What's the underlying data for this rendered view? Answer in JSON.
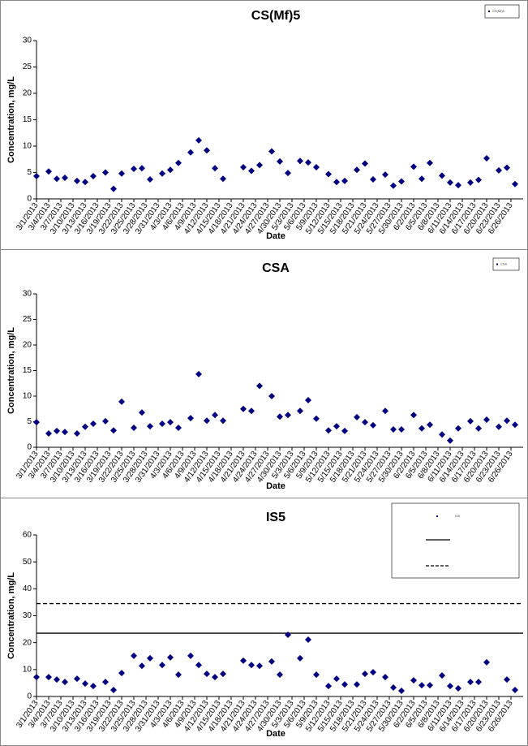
{
  "chart_data": [
    {
      "type": "scatter",
      "title": "CS(Mf)5",
      "x_label": "Date",
      "y_label": "Concentration, mg/L",
      "series": [
        {
          "name": "CS(Mf)5",
          "color": "#000080",
          "x": [
            "3/1/2013",
            "3/4/2013",
            "3/6/2013",
            "3/8/2013",
            "3/11/2013",
            "3/13/2013",
            "3/15/2013",
            "3/18/2013",
            "3/20/2013",
            "3/22/2013",
            "3/25/2013",
            "3/27/2013",
            "3/29/2013",
            "4/1/2013",
            "4/3/2013",
            "4/5/2013",
            "4/8/2013",
            "4/10/2013",
            "4/12/2013",
            "4/14/2013",
            "4/16/2013",
            "4/21/2013",
            "4/23/2013",
            "4/25/2013",
            "4/28/2013",
            "4/30/2013",
            "5/2/2013",
            "5/5/2013",
            "5/7/2013",
            "5/9/2013",
            "5/12/2013",
            "5/14/2013",
            "5/16/2013",
            "5/19/2013",
            "5/21/2013",
            "5/23/2013",
            "5/26/2013",
            "5/28/2013",
            "5/30/2013",
            "6/2/2013",
            "6/4/2013",
            "6/6/2013",
            "6/9/2013",
            "6/11/2013",
            "6/13/2013",
            "6/16/2013",
            "6/18/2013",
            "6/20/2013",
            "6/23/2013",
            "6/25/2013",
            "6/27/2013"
          ],
          "values": [
            4.3,
            5.2,
            3.8,
            4.0,
            3.4,
            3.2,
            4.3,
            5.0,
            1.9,
            4.8,
            5.7,
            5.8,
            3.7,
            4.8,
            5.5,
            6.8,
            8.8,
            11.1,
            9.2,
            5.8,
            3.8,
            6.0,
            5.3,
            6.4,
            9.0,
            7.1,
            4.9,
            7.2,
            6.9,
            6.0,
            4.7,
            3.2,
            3.4,
            5.5,
            6.7,
            3.7,
            4.6,
            2.5,
            3.3,
            6.1,
            3.8,
            6.8,
            4.4,
            3.1,
            2.6,
            3.1,
            3.6,
            7.7,
            5.4,
            5.9,
            2.8
          ]
        }
      ],
      "ylim": [
        0,
        30
      ],
      "yticks": [
        0,
        5,
        10,
        15,
        20,
        25,
        30
      ],
      "xlim": [
        "3/1/2013",
        "6/29/2013"
      ],
      "xticks": [
        "3/1/2013",
        "3/4/2013",
        "3/7/2013",
        "3/10/2013",
        "3/13/2013",
        "3/16/2013",
        "3/19/2013",
        "3/22/2013",
        "3/25/2013",
        "3/28/2013",
        "3/31/2013",
        "4/3/2013",
        "4/6/2013",
        "4/9/2013",
        "4/12/2013",
        "4/15/2013",
        "4/18/2013",
        "4/21/2013",
        "4/24/2013",
        "4/27/2013",
        "4/30/2013",
        "5/3/2013",
        "5/6/2013",
        "5/9/2013",
        "5/12/2013",
        "5/15/2013",
        "5/18/2013",
        "5/21/2013",
        "5/24/2013",
        "5/27/2013",
        "5/30/2013",
        "6/2/2013",
        "6/5/2013",
        "6/8/2013",
        "6/11/2013",
        "6/14/2013",
        "6/17/2013",
        "6/20/2013",
        "6/23/2013",
        "6/26/2013"
      ]
    },
    {
      "type": "scatter",
      "title": "CSA",
      "x_label": "Date",
      "y_label": "Concentration, mg/L",
      "series": [
        {
          "name": "CSA",
          "color": "#000080",
          "x": [
            "3/1/2013",
            "3/4/2013",
            "3/6/2013",
            "3/8/2013",
            "3/11/2013",
            "3/13/2013",
            "3/15/2013",
            "3/18/2013",
            "3/20/2013",
            "3/22/2013",
            "3/25/2013",
            "3/27/2013",
            "3/29/2013",
            "4/1/2013",
            "4/3/2013",
            "4/5/2013",
            "4/8/2013",
            "4/10/2013",
            "4/12/2013",
            "4/14/2013",
            "4/16/2013",
            "4/21/2013",
            "4/23/2013",
            "4/25/2013",
            "4/28/2013",
            "4/30/2013",
            "5/2/2013",
            "5/5/2013",
            "5/7/2013",
            "5/9/2013",
            "5/12/2013",
            "5/14/2013",
            "5/16/2013",
            "5/19/2013",
            "5/21/2013",
            "5/23/2013",
            "5/26/2013",
            "5/28/2013",
            "5/30/2013",
            "6/2/2013",
            "6/4/2013",
            "6/6/2013",
            "6/9/2013",
            "6/11/2013",
            "6/13/2013",
            "6/16/2013",
            "6/18/2013",
            "6/20/2013",
            "6/23/2013",
            "6/25/2013",
            "6/27/2013"
          ],
          "values": [
            4.9,
            2.7,
            3.2,
            3.0,
            2.7,
            4.0,
            4.6,
            5.1,
            3.3,
            8.9,
            3.8,
            6.8,
            4.1,
            4.6,
            4.9,
            3.8,
            5.7,
            14.3,
            5.2,
            6.3,
            5.2,
            7.5,
            7.1,
            12.0,
            10.0,
            6.0,
            6.3,
            7.1,
            9.2,
            5.6,
            3.3,
            4.1,
            3.2,
            5.9,
            4.9,
            4.3,
            7.1,
            3.5,
            3.5,
            6.3,
            3.7,
            4.4,
            2.5,
            1.3,
            3.7,
            5.1,
            3.7,
            5.4,
            4.0,
            5.2,
            4.4
          ]
        }
      ],
      "ylim": [
        0,
        30
      ],
      "yticks": [
        0,
        5,
        10,
        15,
        20,
        25,
        30
      ],
      "xlim": [
        "3/1/2013",
        "6/29/2013"
      ],
      "xticks": [
        "3/1/2013",
        "3/4/2013",
        "3/7/2013",
        "3/10/2013",
        "3/13/2013",
        "3/16/2013",
        "3/19/2013",
        "3/22/2013",
        "3/25/2013",
        "3/28/2013",
        "3/31/2013",
        "4/3/2013",
        "4/6/2013",
        "4/9/2013",
        "4/12/2013",
        "4/15/2013",
        "4/18/2013",
        "4/21/2013",
        "4/24/2013",
        "4/27/2013",
        "4/30/2013",
        "5/3/2013",
        "5/6/2013",
        "5/9/2013",
        "5/12/2013",
        "5/15/2013",
        "5/18/2013",
        "5/21/2013",
        "5/24/2013",
        "5/27/2013",
        "5/30/2013",
        "6/2/2013",
        "6/5/2013",
        "6/8/2013",
        "6/11/2013",
        "6/14/2013",
        "6/17/2013",
        "6/20/2013",
        "6/23/2013",
        "6/26/2013"
      ]
    },
    {
      "type": "scatter",
      "title": "IS5",
      "x_label": "Date",
      "y_label": "Concentration, mg/L",
      "series": [
        {
          "name": "IS5",
          "color": "#000080",
          "x": [
            "3/1/2013",
            "3/4/2013",
            "3/6/2013",
            "3/8/2013",
            "3/11/2013",
            "3/13/2013",
            "3/15/2013",
            "3/18/2013",
            "3/20/2013",
            "3/22/2013",
            "3/25/2013",
            "3/27/2013",
            "3/29/2013",
            "4/1/2013",
            "4/3/2013",
            "4/5/2013",
            "4/8/2013",
            "4/10/2013",
            "4/12/2013",
            "4/14/2013",
            "4/16/2013",
            "4/21/2013",
            "4/23/2013",
            "4/25/2013",
            "4/28/2013",
            "4/30/2013",
            "5/2/2013",
            "5/5/2013",
            "5/7/2013",
            "5/9/2013",
            "5/12/2013",
            "5/14/2013",
            "5/16/2013",
            "5/19/2013",
            "5/21/2013",
            "5/23/2013",
            "5/26/2013",
            "5/28/2013",
            "5/30/2013",
            "6/2/2013",
            "6/4/2013",
            "6/6/2013",
            "6/9/2013",
            "6/11/2013",
            "6/13/2013",
            "6/16/2013",
            "6/18/2013",
            "6/20/2013",
            "6/25/2013",
            "6/27/2013"
          ],
          "values": [
            7.2,
            7.2,
            6.3,
            5.4,
            6.6,
            4.8,
            3.9,
            5.4,
            2.4,
            8.7,
            15.1,
            11.4,
            14.2,
            11.7,
            14.5,
            8.1,
            15.1,
            11.7,
            8.4,
            7.2,
            8.4,
            13.3,
            11.7,
            11.4,
            13.0,
            8.1,
            22.9,
            14.2,
            21.1,
            8.1,
            3.9,
            6.6,
            4.5,
            4.5,
            8.4,
            9.0,
            7.2,
            3.3,
            2.1,
            6.0,
            4.2,
            4.2,
            7.8,
            3.9,
            3.0,
            5.4,
            5.4,
            12.7,
            6.3,
            2.4
          ]
        }
      ],
      "reference_lines": [
        {
          "value": 23.5,
          "style": "solid",
          "color": "#000000"
        },
        {
          "value": 34.5,
          "style": "dashed",
          "color": "#000000"
        }
      ],
      "ylim": [
        0,
        60
      ],
      "yticks": [
        0,
        10,
        20,
        30,
        40,
        50,
        60
      ],
      "xlim": [
        "3/1/2013",
        "6/29/2013"
      ],
      "xticks": [
        "3/1/2013",
        "3/4/2013",
        "3/7/2013",
        "3/10/2013",
        "3/13/2013",
        "3/16/2013",
        "3/19/2013",
        "3/22/2013",
        "3/25/2013",
        "3/28/2013",
        "3/31/2013",
        "4/3/2013",
        "4/6/2013",
        "4/9/2013",
        "4/12/2013",
        "4/15/2013",
        "4/18/2013",
        "4/21/2013",
        "4/24/2013",
        "4/27/2013",
        "4/30/2013",
        "5/3/2013",
        "5/6/2013",
        "5/9/2013",
        "5/12/2013",
        "5/15/2013",
        "5/18/2013",
        "5/21/2013",
        "5/24/2013",
        "5/27/2013",
        "5/30/2013",
        "6/2/2013",
        "6/5/2013",
        "6/8/2013",
        "6/11/2013",
        "6/14/2013",
        "6/17/2013",
        "6/20/2013",
        "6/23/2013",
        "6/26/2013"
      ]
    }
  ]
}
